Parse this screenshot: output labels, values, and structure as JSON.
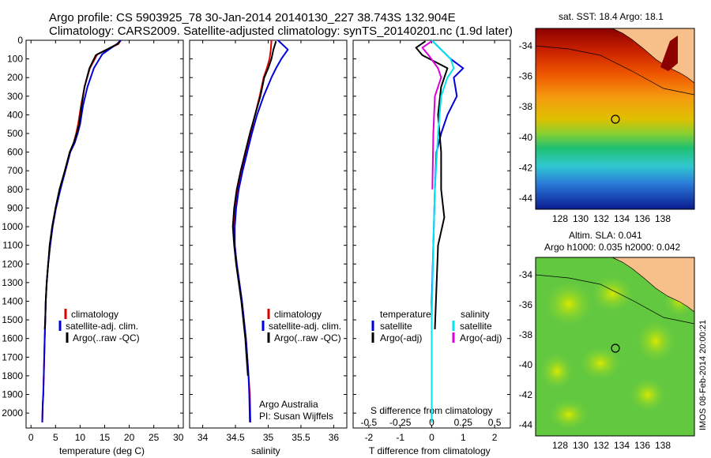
{
  "header": {
    "line1": "Argo profile: CS 5903925_78 30-Jan-2014 20140130_227 38.743S 132.904E",
    "line2": "Climatology: CARS2009. Satellite-adjusted climatology: synTS_20140201.nc (1.9d later)"
  },
  "colors": {
    "climatology": "#dd0000",
    "satellite": "#0000dd",
    "argo": "#000000",
    "sal_satellite": "#00e5ee",
    "sal_argo": "#dd00dd"
  },
  "depth_ticks": [
    "0",
    "100",
    "200",
    "300",
    "400",
    "500",
    "600",
    "700",
    "800",
    "900",
    "1000",
    "1100",
    "1200",
    "1300",
    "1400",
    "1500",
    "1600",
    "1700",
    "1800",
    "1900",
    "2000"
  ],
  "panels": {
    "temperature": {
      "xticks": [
        "0",
        "5",
        "10",
        "15",
        "20",
        "25",
        "30"
      ],
      "xlabel": "temperature (deg C)",
      "legend": [
        "climatology",
        "satellite-adj. clim.",
        "Argo(..raw -QC)"
      ]
    },
    "salinity": {
      "xticks": [
        "34",
        "34.5",
        "35",
        "35.5",
        "36"
      ],
      "xlabel": "salinity",
      "legend": [
        "climatology",
        "satellite-adj. clim.",
        "Argo(..raw -QC)"
      ],
      "note1": "Argo Australia",
      "note2": "PI: Susan Wijffels"
    },
    "difference": {
      "xticks": [
        "-2",
        "-1",
        "0",
        "1",
        "2"
      ],
      "top_ticks": [
        "-0.5",
        "-0.25",
        "0",
        "0.25",
        "0.5"
      ],
      "xlabel": "T difference from climatology",
      "top_label": "S difference from climatology",
      "legend_head_t": "temperature",
      "legend_head_s": "salinity",
      "legend_t": [
        "satellite",
        "Argo(-adj)"
      ],
      "legend_s": [
        "satellite",
        "Argo(-adj)"
      ]
    }
  },
  "maps": {
    "sst_title": "sat. SST: 18.4 Argo: 18.1",
    "sla_title1": "Altim. SLA: 0.041",
    "sla_title2": "Argo h1000: 0.035 h2000: 0.042",
    "lat_ticks": [
      "-34",
      "-36",
      "-38",
      "-40",
      "-42",
      "-44"
    ],
    "lon_ticks": [
      "128",
      "130",
      "132",
      "134",
      "136",
      "138"
    ],
    "footer": "IMOS 08-Feb-2014 20:00:21"
  },
  "chart_data": [
    {
      "type": "line",
      "title": "",
      "xlabel": "temperature (deg C)",
      "ylabel": "",
      "xlim": [
        -1,
        31
      ],
      "ylim": [
        2080,
        0
      ],
      "series": [
        {
          "name": "climatology",
          "x": [
            18.3,
            17.8,
            13.5,
            12.0,
            10.9,
            10.2,
            9.6,
            9.2,
            8.7,
            7.9,
            6.9,
            5.9,
            5.0,
            4.4,
            3.9,
            3.5,
            3.2,
            3.0,
            2.9,
            2.8,
            2.7,
            2.6,
            2.5,
            2.4,
            2.35,
            2.3
          ],
          "y": [
            0,
            20,
            75,
            150,
            250,
            350,
            450,
            500,
            550,
            600,
            700,
            800,
            900,
            1000,
            1100,
            1200,
            1300,
            1400,
            1500,
            1600,
            1700,
            1800,
            1900,
            1950,
            2000,
            2050
          ]
        },
        {
          "name": "satellite-adj. clim.",
          "x": [
            18.3,
            17.5,
            14.5,
            12.8,
            11.5,
            10.6,
            10.0,
            9.5,
            8.9,
            8.0,
            7.0,
            6.0,
            5.1,
            4.4,
            3.9,
            3.5,
            3.2,
            3.0,
            2.9,
            2.8,
            2.7,
            2.6,
            2.5,
            2.4,
            2.35,
            2.3
          ],
          "y": [
            0,
            20,
            75,
            150,
            250,
            350,
            450,
            500,
            550,
            600,
            700,
            800,
            900,
            1000,
            1100,
            1200,
            1300,
            1400,
            1500,
            1600,
            1700,
            1800,
            1900,
            1950,
            2000,
            2050
          ]
        },
        {
          "name": "Argo(..raw -QC)",
          "x": [
            18.1,
            17.6,
            13.2,
            11.9,
            10.9,
            10.3,
            9.8,
            9.3,
            8.7,
            7.9,
            6.9,
            5.8,
            5.0,
            4.3,
            3.8,
            3.5,
            3.2,
            3.0,
            2.9,
            2.8
          ],
          "y": [
            5,
            20,
            80,
            150,
            250,
            350,
            450,
            500,
            550,
            600,
            700,
            800,
            900,
            1000,
            1100,
            1200,
            1300,
            1400,
            1500,
            1550
          ]
        }
      ]
    },
    {
      "type": "line",
      "title": "",
      "xlabel": "salinity",
      "ylabel": "",
      "xlim": [
        33.8,
        36.2
      ],
      "ylim": [
        2080,
        0
      ],
      "series": [
        {
          "name": "climatology",
          "x": [
            35.05,
            35.04,
            35.02,
            34.98,
            34.93,
            34.87,
            34.8,
            34.73,
            34.66,
            34.6,
            34.54,
            34.5,
            34.48,
            34.49,
            34.52,
            34.56,
            34.6,
            34.63,
            34.66,
            34.68,
            34.7,
            34.72,
            34.73
          ],
          "y": [
            0,
            50,
            100,
            150,
            200,
            300,
            400,
            500,
            600,
            700,
            800,
            900,
            1000,
            1100,
            1200,
            1300,
            1400,
            1500,
            1600,
            1700,
            1800,
            1900,
            2050
          ]
        },
        {
          "name": "satellite-adj. clim.",
          "x": [
            35.15,
            35.3,
            35.2,
            35.12,
            35.05,
            34.93,
            34.83,
            34.75,
            34.68,
            34.61,
            34.55,
            34.51,
            34.49,
            34.49,
            34.52,
            34.56,
            34.6,
            34.63,
            34.66,
            34.68,
            34.7,
            34.71,
            34.72
          ],
          "y": [
            0,
            50,
            100,
            150,
            200,
            300,
            400,
            500,
            600,
            700,
            800,
            900,
            1000,
            1100,
            1200,
            1300,
            1400,
            1500,
            1600,
            1700,
            1800,
            1900,
            2050
          ]
        },
        {
          "name": "Argo(..raw -QC)",
          "x": [
            35.12,
            35.08,
            35.05,
            35.0,
            34.94,
            34.88,
            34.8,
            34.72,
            34.65,
            34.58,
            34.52,
            34.48,
            34.46,
            34.48,
            34.51,
            34.55,
            34.59,
            34.62,
            34.65,
            34.67,
            34.69
          ],
          "y": [
            5,
            50,
            100,
            150,
            200,
            300,
            400,
            500,
            600,
            700,
            800,
            900,
            1000,
            1100,
            1200,
            1300,
            1400,
            1500,
            1600,
            1700,
            1800
          ]
        }
      ]
    },
    {
      "type": "line",
      "title": "",
      "xlabel": "T difference from climatology",
      "ylabel": "",
      "xlim": [
        -2.5,
        2.5
      ],
      "ylim": [
        2080,
        0
      ],
      "series": [
        {
          "name": "temperature satellite",
          "x": [
            0,
            0.3,
            0.6,
            1.0,
            0.7,
            0.8,
            0.5,
            0.3,
            0.15,
            0.1,
            0.05,
            0,
            0
          ],
          "y": [
            0,
            50,
            100,
            150,
            200,
            300,
            400,
            500,
            600,
            800,
            1100,
            1400,
            1700
          ]
        },
        {
          "name": "temperature Argo(-adj)",
          "x": [
            -0.2,
            -0.5,
            -0.3,
            0.5,
            0.3,
            0.2,
            0.3,
            0.3,
            0.4,
            0.2,
            0.1
          ],
          "y": [
            5,
            40,
            80,
            150,
            250,
            400,
            600,
            800,
            950,
            1100,
            1550
          ]
        },
        {
          "name": "salinity satellite",
          "x": [
            0,
            0.3,
            0.6,
            0.7,
            0.5,
            0.3,
            0.2,
            0.1,
            0.05,
            0,
            0
          ],
          "y": [
            0,
            50,
            100,
            150,
            200,
            300,
            500,
            800,
            1100,
            1500,
            2050
          ]
        },
        {
          "name": "salinity Argo(-adj)",
          "x": [
            0,
            -0.3,
            -0.1,
            0.2,
            0.3,
            0.1,
            0.05,
            0.02
          ],
          "y": [
            5,
            40,
            80,
            150,
            200,
            300,
            500,
            800
          ]
        }
      ]
    }
  ]
}
